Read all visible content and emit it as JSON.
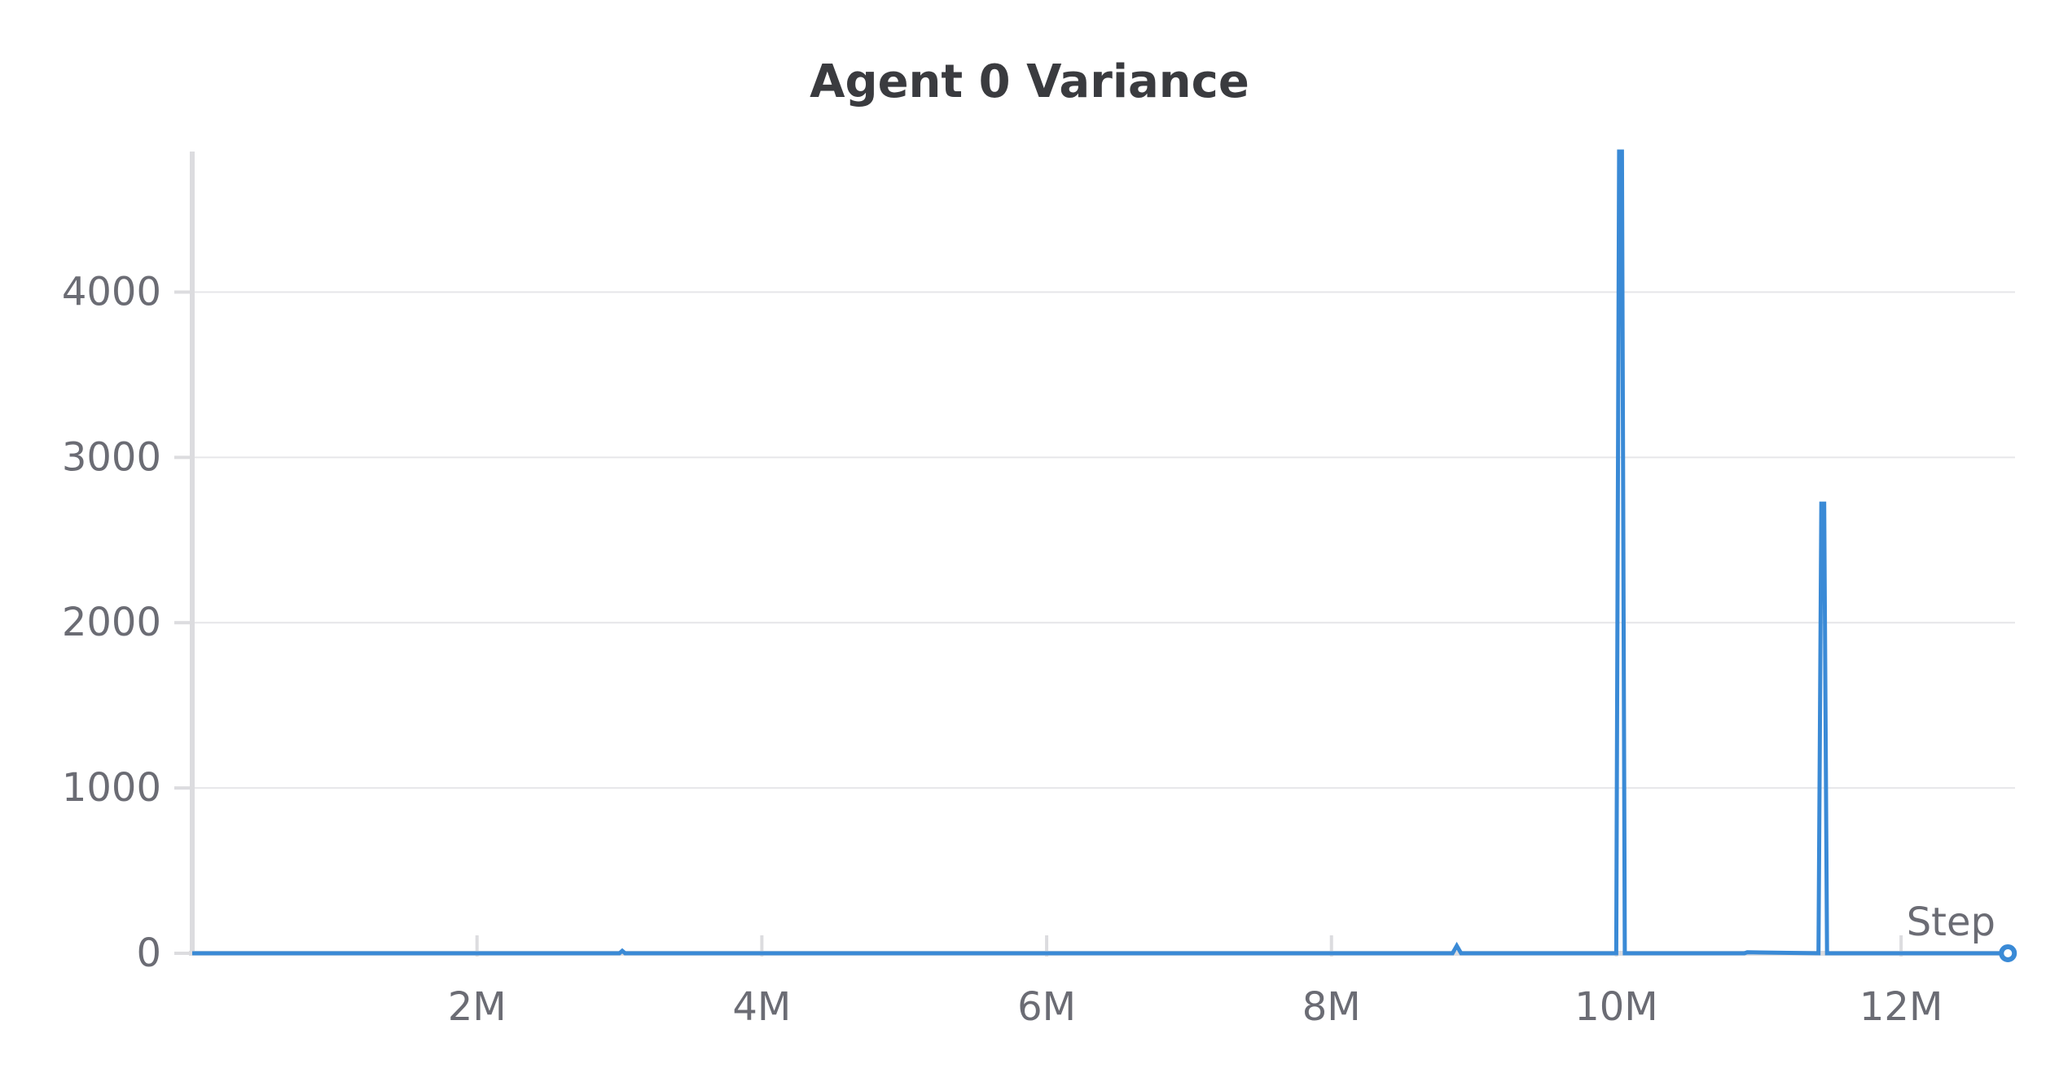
{
  "chart_data": {
    "type": "line",
    "title": "Agent 0 Variance",
    "xlabel": "Step",
    "ylabel": "",
    "x_tick_labels": [
      "2M",
      "4M",
      "6M",
      "8M",
      "10M",
      "12M"
    ],
    "x_ticks": [
      2000000,
      4000000,
      6000000,
      8000000,
      10000000,
      12000000
    ],
    "y_tick_labels": [
      "0",
      "1000",
      "2000",
      "3000",
      "4000"
    ],
    "y_ticks": [
      0,
      1000,
      2000,
      3000,
      4000
    ],
    "xlim": [
      0,
      12800000
    ],
    "ylim": [
      0,
      4850
    ],
    "grid": true,
    "series": [
      {
        "color": "#3a8ad6",
        "x": [
          0,
          3000000,
          3020000,
          3040000,
          6000000,
          8850000,
          8880000,
          8910000,
          10000000,
          10020000,
          10040000,
          10060000,
          10900000,
          10920000,
          11420000,
          11440000,
          11460000,
          11480000,
          12750000
        ],
        "y": [
          0,
          0,
          15,
          0,
          0,
          0,
          45,
          0,
          0,
          4850,
          4850,
          0,
          0,
          6,
          0,
          2720,
          2720,
          0,
          0
        ]
      }
    ]
  }
}
